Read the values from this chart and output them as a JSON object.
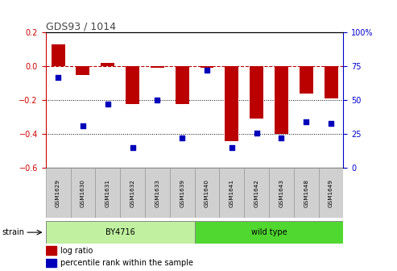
{
  "title": "GDS93 / 1014",
  "samples": [
    "GSM1629",
    "GSM1630",
    "GSM1631",
    "GSM1632",
    "GSM1633",
    "GSM1639",
    "GSM1640",
    "GSM1641",
    "GSM1642",
    "GSM1643",
    "GSM1648",
    "GSM1649"
  ],
  "log_ratio": [
    0.13,
    -0.05,
    0.02,
    -0.22,
    -0.01,
    -0.22,
    -0.01,
    -0.44,
    -0.31,
    -0.4,
    -0.16,
    -0.19
  ],
  "percentile": [
    67,
    31,
    47,
    15,
    50,
    22,
    72,
    15,
    26,
    22,
    34,
    33
  ],
  "strain_groups": [
    {
      "label": "BY4716",
      "start": 0,
      "end": 5,
      "color": "#c8f0b0"
    },
    {
      "label": "wild type",
      "start": 6,
      "end": 11,
      "color": "#60d840"
    }
  ],
  "bar_color": "#bb0000",
  "dot_color": "#0000bb",
  "left_ylim": [
    -0.6,
    0.2
  ],
  "right_ylim": [
    0,
    100
  ],
  "left_yticks": [
    -0.6,
    -0.4,
    -0.2,
    0.0,
    0.2
  ],
  "right_yticks": [
    0,
    25,
    50,
    75,
    100
  ],
  "hline_y": 0.0,
  "dotted_lines": [
    -0.2,
    -0.4
  ],
  "background_color": "#ffffff",
  "strain_label": "strain",
  "legend_log_ratio": "log ratio",
  "legend_percentile": "percentile rank within the sample",
  "title_color": "#333333",
  "left_axis_color": "#cc0000",
  "right_axis_color": "#0000cc",
  "sample_box_color": "#d0d0d0",
  "by4716_color": "#c0f0a0",
  "wildtype_color": "#50d830"
}
